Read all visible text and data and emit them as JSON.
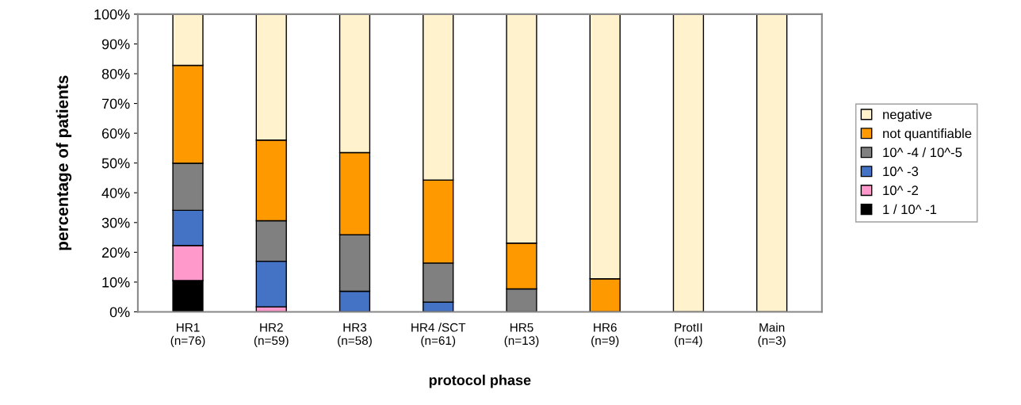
{
  "chart_data": {
    "type": "bar",
    "stacked": true,
    "xlabel": "protocol phase",
    "ylabel": "percentage of patients",
    "categories": [
      "HR1\n(n=76)",
      "HR2\n(n=59)",
      "HR3\n(n=58)",
      "HR4 /SCT\n(n=61)",
      "HR5\n(n=13)",
      "HR6\n(n=9)",
      "ProtII\n(n=4)",
      "Main\n(n=3)"
    ],
    "series": [
      {
        "name": "1 / 10^ -1",
        "color": "#000000",
        "values": [
          10.5,
          0,
          0,
          0,
          0,
          0,
          0,
          0
        ]
      },
      {
        "name": "10^ -2",
        "color": "#ff99cc",
        "values": [
          11.8,
          1.7,
          0,
          0,
          0,
          0,
          0,
          0
        ]
      },
      {
        "name": "10^ -3",
        "color": "#4472c4",
        "values": [
          11.8,
          15.3,
          6.9,
          3.3,
          0,
          0,
          0,
          0
        ]
      },
      {
        "name": "10^ -4 / 10^-5",
        "color": "#808080",
        "values": [
          15.8,
          13.6,
          19.0,
          13.1,
          7.7,
          0,
          0,
          0
        ]
      },
      {
        "name": "not quantifiable",
        "color": "#ff9900",
        "values": [
          32.9,
          27.1,
          27.6,
          27.9,
          15.4,
          11.1,
          0,
          0
        ]
      },
      {
        "name": "negative",
        "color": "#fff2cc",
        "values": [
          17.1,
          42.4,
          46.6,
          55.7,
          76.9,
          88.9,
          100,
          100
        ]
      }
    ],
    "ylim": [
      0,
      100
    ],
    "yticks": [
      {
        "value": 0,
        "label": "0%"
      },
      {
        "value": 10,
        "label": "10%"
      },
      {
        "value": 20,
        "label": "20%"
      },
      {
        "value": 30,
        "label": "30%"
      },
      {
        "value": 40,
        "label": "40%"
      },
      {
        "value": 50,
        "label": "50%"
      },
      {
        "value": 60,
        "label": "60%"
      },
      {
        "value": 70,
        "label": "70%"
      },
      {
        "value": 80,
        "label": "80%"
      },
      {
        "value": 90,
        "label": "90%"
      },
      {
        "value": 100,
        "label": "100%"
      }
    ],
    "grid": false,
    "legend": "right"
  }
}
